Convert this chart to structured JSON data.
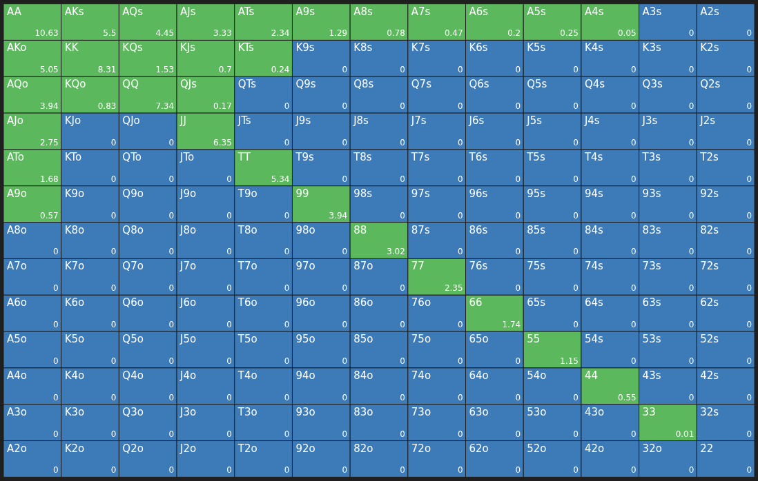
{
  "chart_data": {
    "type": "heatmap",
    "categories": [
      null,
      null,
      null,
      null,
      null,
      null,
      null,
      null,
      null,
      null,
      null,
      null,
      null
    ],
    "y_categories": [
      null,
      null,
      null,
      null,
      null,
      null,
      null,
      null,
      null,
      null,
      null,
      null,
      null
    ],
    "colors": [
      "#3d7bb8",
      "#5cb85c"
    ],
    "data_labels": true,
    "cells": [
      [
        10.63,
        5.5,
        4.45,
        3.33,
        2.34,
        1.29,
        0.78,
        0.47,
        0.2,
        0.25,
        0.05,
        0,
        0
      ],
      [
        5.05,
        8.31,
        1.53,
        0.7,
        0.24,
        0,
        0,
        0,
        0,
        0,
        0,
        0,
        0
      ],
      [
        3.94,
        0.83,
        7.34,
        0.17,
        0,
        0,
        0,
        0,
        0,
        0,
        0,
        0,
        0
      ],
      [
        2.75,
        0,
        0,
        6.35,
        0,
        0,
        0,
        0,
        0,
        0,
        0,
        0,
        0
      ],
      [
        1.68,
        0,
        0,
        0,
        5.34,
        0,
        0,
        0,
        0,
        0,
        0,
        0,
        0
      ],
      [
        0.57,
        0,
        0,
        0,
        0,
        3.94,
        0,
        0,
        0,
        0,
        0,
        0,
        0
      ],
      [
        0,
        0,
        0,
        0,
        0,
        0,
        3.02,
        0,
        0,
        0,
        0,
        0,
        0
      ],
      [
        0,
        0,
        0,
        0,
        0,
        0,
        0,
        2.35,
        0,
        0,
        0,
        0,
        0
      ],
      [
        0,
        0,
        0,
        0,
        0,
        0,
        0,
        0,
        1.74,
        0,
        0,
        0,
        0
      ],
      [
        0,
        0,
        0,
        0,
        0,
        0,
        0,
        0,
        0,
        1.15,
        0,
        0,
        0
      ],
      [
        0,
        0,
        0,
        0,
        0,
        0,
        0,
        0,
        0,
        0,
        0.55,
        0,
        0
      ],
      [
        0,
        0,
        0,
        0,
        0,
        0,
        0,
        0,
        0,
        0,
        0,
        0.01,
        0
      ],
      [
        0,
        0,
        0,
        0,
        0,
        0,
        0,
        0,
        0,
        0,
        0,
        0,
        0
      ]
    ],
    "annotations": [
      "AA",
      "AKs",
      "AQs",
      "AJs",
      "ATs",
      "A9s",
      "A8s",
      "A7s",
      "A6s",
      "A5s",
      "A4s",
      "A3s",
      "A2s",
      "AKo",
      "KK",
      "KQs",
      "KJs",
      "KTs",
      "K9s",
      "K8s",
      "K7s",
      "K6s",
      "K5s",
      "K4s",
      "K3s",
      "K2s",
      "AQo",
      "KQo",
      "QQ",
      "QJs",
      "QTs",
      "Q9s",
      "Q8s",
      "Q7s",
      "Q6s",
      "Q5s",
      "Q4s",
      "Q3s",
      "Q2s",
      "AJo",
      "KJo",
      "QJo",
      "JJ",
      "JTs",
      "J9s",
      "J8s",
      "J7s",
      "J6s",
      "J5s",
      "J4s",
      "J3s",
      "J2s",
      "ATo",
      "KTo",
      "QTo",
      "JTo",
      "TT",
      "T9s",
      "T8s",
      "T7s",
      "T6s",
      "T5s",
      "T4s",
      "T3s",
      "T2s",
      "A9o",
      "K9o",
      "Q9o",
      "J9o",
      "T9o",
      "99",
      "98s",
      "97s",
      "96s",
      "95s",
      "94s",
      "93s",
      "92s",
      "A8o",
      "K8o",
      "Q8o",
      "J8o",
      "T8o",
      "98o",
      "88",
      "87s",
      "86s",
      "85s",
      "84s",
      "83s",
      "82s",
      "A7o",
      "K7o",
      "Q7o",
      "J7o",
      "T7o",
      "97o",
      "87o",
      "77",
      "76s",
      "75s",
      "74s",
      "73s",
      "72s",
      "A6o",
      "K6o",
      "Q6o",
      "J6o",
      "T6o",
      "96o",
      "86o",
      "76o",
      "66",
      "65s",
      "64s",
      "63s",
      "62s",
      "A5o",
      "K5o",
      "Q5o",
      "J5o",
      "T5o",
      "95o",
      "85o",
      "75o",
      "65o",
      "55",
      "54s",
      "53s",
      "52s",
      "A4o",
      "K4o",
      "Q4o",
      "J4o",
      "T4o",
      "94o",
      "84o",
      "74o",
      "64o",
      "54o",
      "44",
      "43s",
      "42s",
      "A3o",
      "K3o",
      "Q3o",
      "J3o",
      "T3o",
      "93o",
      "83o",
      "73o",
      "63o",
      "53o",
      "43o",
      "33",
      "32s",
      "A2o",
      "K2o",
      "Q2o",
      "J2o",
      "T2o",
      "92o",
      "82o",
      "72o",
      "62o",
      "52o",
      "42o",
      "32o",
      "22"
    ]
  }
}
